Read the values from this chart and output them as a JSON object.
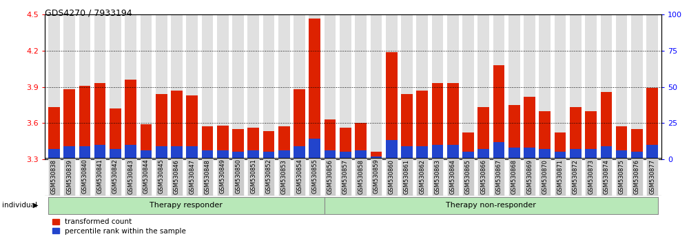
{
  "title": "GDS4270 / 7933194",
  "samples": [
    "GSM530838",
    "GSM530839",
    "GSM530840",
    "GSM530841",
    "GSM530842",
    "GSM530843",
    "GSM530844",
    "GSM530845",
    "GSM530846",
    "GSM530847",
    "GSM530848",
    "GSM530849",
    "GSM530850",
    "GSM530851",
    "GSM530852",
    "GSM530853",
    "GSM530854",
    "GSM530855",
    "GSM530856",
    "GSM530857",
    "GSM530858",
    "GSM530859",
    "GSM530860",
    "GSM530861",
    "GSM530862",
    "GSM530863",
    "GSM530864",
    "GSM530865",
    "GSM530866",
    "GSM530867",
    "GSM530868",
    "GSM530869",
    "GSM530870",
    "GSM530871",
    "GSM530872",
    "GSM530873",
    "GSM530874",
    "GSM530875",
    "GSM530876",
    "GSM530877"
  ],
  "transformed_count": [
    3.73,
    3.88,
    3.91,
    3.93,
    3.72,
    3.96,
    3.59,
    3.84,
    3.87,
    3.83,
    3.57,
    3.58,
    3.55,
    3.56,
    3.53,
    3.57,
    3.88,
    4.47,
    3.63,
    3.56,
    3.6,
    3.36,
    4.19,
    3.84,
    3.87,
    3.93,
    3.93,
    3.52,
    3.73,
    4.08,
    3.75,
    3.82,
    3.7,
    3.52,
    3.73,
    3.7,
    3.86,
    3.57,
    3.55,
    3.89
  ],
  "percentile_rank": [
    7,
    9,
    9,
    10,
    7,
    10,
    6,
    9,
    9,
    9,
    6,
    6,
    5,
    6,
    5,
    6,
    9,
    14,
    6,
    5,
    6,
    2,
    13,
    9,
    9,
    10,
    10,
    5,
    7,
    12,
    8,
    8,
    7,
    5,
    7,
    7,
    9,
    6,
    5,
    10
  ],
  "group_divider": 18,
  "group1_label": "Therapy responder",
  "group2_label": "Therapy non-responder",
  "ylim_left": [
    3.3,
    4.5
  ],
  "ylim_right": [
    0,
    100
  ],
  "yticks_left": [
    3.3,
    3.6,
    3.9,
    4.2,
    4.5
  ],
  "yticks_right": [
    0,
    25,
    50,
    75,
    100
  ],
  "bar_color_red": "#dd2200",
  "bar_color_blue": "#2244cc",
  "background_bar": "#cccccc",
  "group_bg_color": "#b8e8b8",
  "group_border_color": "#888888",
  "individual_label": "individual",
  "legend_red": "transformed count",
  "legend_blue": "percentile rank within the sample",
  "title_fontsize": 9,
  "tick_fontsize": 8,
  "label_fontsize": 6
}
